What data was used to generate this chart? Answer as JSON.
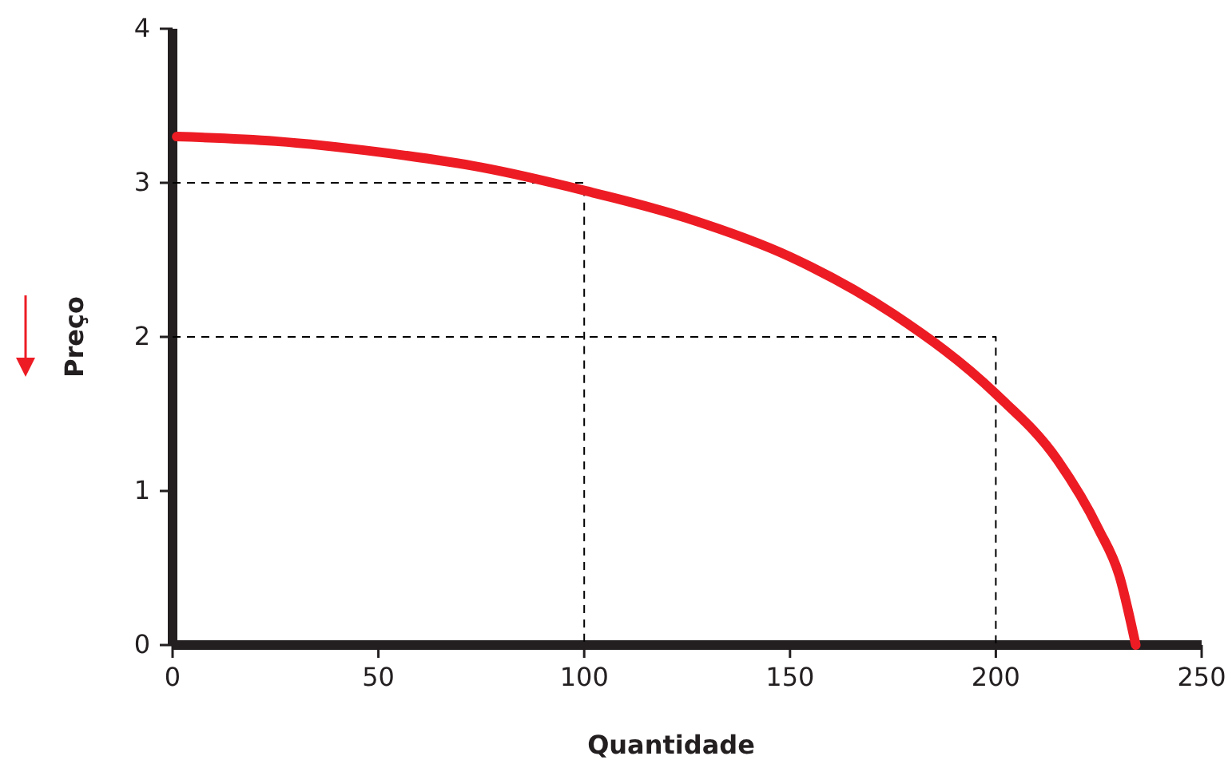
{
  "chart_data": {
    "type": "line",
    "xlabel": "Quantidade",
    "ylabel": "Preço",
    "x": [
      1,
      25,
      50,
      75,
      100,
      125,
      150,
      175,
      200,
      215,
      225,
      230,
      234
    ],
    "xlim": [
      0,
      250
    ],
    "xticks": [
      0,
      50,
      100,
      150,
      200,
      250
    ],
    "ylim": [
      0,
      4
    ],
    "yticks": [
      0,
      1,
      2,
      3,
      4
    ],
    "grid": false,
    "series": [
      {
        "color": "#ed1c24",
        "values": [
          3.3,
          3.27,
          3.2,
          3.1,
          2.95,
          2.77,
          2.52,
          2.15,
          1.63,
          1.2,
          0.75,
          0.45,
          0
        ],
        "line_style": "solid"
      },
      {
        "color": "#000000",
        "x": [
          0,
          100,
          100
        ],
        "values": [
          3,
          3,
          0
        ],
        "line_style": "dashed"
      },
      {
        "color": "#000000",
        "x": [
          0,
          200,
          200
        ],
        "values": [
          2,
          2,
          0
        ],
        "line_style": "dashed"
      }
    ]
  }
}
